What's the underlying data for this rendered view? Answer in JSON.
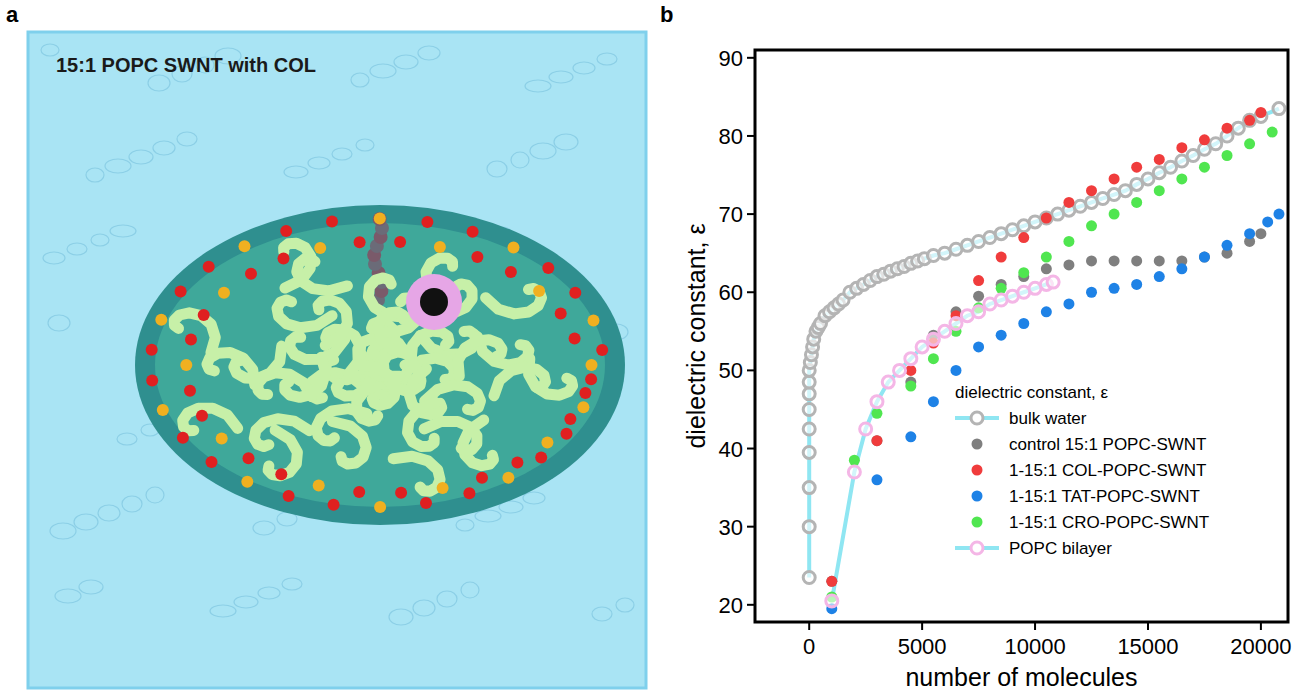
{
  "figure": {
    "panel_letters": [
      "a",
      "b"
    ]
  },
  "panel_a": {
    "label": "15:1 POPC SWNT with COL"
  },
  "chart_data": {
    "type": "scatter",
    "x_label": "number of molecules",
    "y_label": "dielectric constant, ε",
    "legend_title": "dielectric constant, ε",
    "legend": "lower right",
    "xlim": [
      -2400,
      21200
    ],
    "ylim": [
      17.8,
      91
    ],
    "xticks": [
      0,
      5000,
      10000,
      15000,
      20000
    ],
    "yticks": [
      20,
      30,
      40,
      50,
      60,
      70,
      80,
      90
    ],
    "grid": false,
    "series": [
      {
        "name": "bulk water",
        "color": "#b4b4b4",
        "marker": "open-circle",
        "line_style": "solid",
        "x": [
          0,
          0,
          0,
          0,
          0,
          0,
          0,
          0,
          0,
          50,
          100,
          150,
          200,
          300,
          400,
          500,
          700,
          900,
          1100,
          1300,
          1500,
          1800,
          2100,
          2400,
          2700,
          3000,
          3300,
          3600,
          3900,
          4200,
          4500,
          4800,
          5100,
          5500,
          6000,
          6500,
          7000,
          7500,
          8000,
          8500,
          9000,
          9500,
          10000,
          10500,
          11000,
          11500,
          12000,
          12500,
          13000,
          13500,
          14000,
          14500,
          15000,
          15500,
          16000,
          16500,
          17000,
          17500,
          18000,
          18500,
          19000,
          19500,
          20000,
          20800
        ],
        "values": [
          23.5,
          30,
          35,
          39.5,
          42.5,
          45,
          47,
          48.5,
          50,
          51,
          52,
          53,
          54,
          55,
          55.5,
          56,
          57,
          57.5,
          58,
          58.5,
          59,
          60,
          60.5,
          61,
          61.5,
          62,
          62.3,
          62.7,
          63,
          63.3,
          63.7,
          64,
          64.3,
          64.7,
          65,
          65.5,
          66,
          66.5,
          67,
          67.5,
          68,
          68.5,
          69,
          69.5,
          70,
          70.5,
          71,
          71.5,
          72,
          72.5,
          73,
          73.8,
          74.5,
          75.3,
          76,
          76.8,
          77.5,
          78.3,
          79,
          80,
          81,
          82,
          82.5,
          83.5
        ]
      },
      {
        "name": "control 15:1 POPC-SWNT",
        "color": "#7f7f7f",
        "marker": "circle",
        "x": [
          1000,
          3000,
          4500,
          5500,
          6500,
          7500,
          8500,
          9500,
          10500,
          11500,
          12500,
          13500,
          14500,
          15500,
          16500,
          17500,
          18500,
          19500,
          20000
        ],
        "values": [
          23,
          41,
          48.5,
          54.5,
          57.5,
          59.5,
          61,
          62,
          63,
          63.5,
          64,
          64,
          64,
          64,
          64,
          64.5,
          65,
          66.5,
          67.5
        ]
      },
      {
        "name": "1-15:1 COL-POPC-SWNT",
        "color": "#f03c3c",
        "marker": "circle",
        "x": [
          1000,
          3000,
          4500,
          5500,
          6500,
          7500,
          8500,
          9500,
          10500,
          11500,
          12500,
          13500,
          14500,
          15500,
          16500,
          17500,
          18500,
          19500,
          20000
        ],
        "values": [
          23,
          41,
          50,
          53.5,
          57,
          61.5,
          64.5,
          67,
          69.5,
          71.5,
          73,
          74.5,
          76,
          77,
          78.5,
          79.5,
          81,
          82,
          83
        ]
      },
      {
        "name": "1-15:1 TAT-POPC-SWNT",
        "color": "#1e82e6",
        "marker": "circle",
        "x": [
          1000,
          3000,
          4500,
          5500,
          6500,
          7500,
          8500,
          9500,
          10500,
          11500,
          12500,
          13500,
          14500,
          15500,
          16500,
          17500,
          18500,
          19500,
          20300,
          20800
        ],
        "values": [
          19.5,
          36,
          41.5,
          46,
          50,
          53,
          54.5,
          56,
          57.5,
          58.5,
          60,
          60.5,
          61,
          62,
          63,
          64.5,
          66,
          67.5,
          69,
          70
        ]
      },
      {
        "name": "1-15:1 CRO-POPC-SWNT",
        "color": "#50e650",
        "marker": "circle",
        "x": [
          1000,
          2000,
          3000,
          4500,
          5500,
          6500,
          7500,
          8500,
          9500,
          10500,
          11500,
          12500,
          13500,
          14500,
          15500,
          16500,
          17500,
          18500,
          19500,
          20500
        ],
        "values": [
          21,
          38.5,
          44.5,
          48,
          51.5,
          55,
          58,
          60.5,
          62.5,
          64.5,
          66.5,
          68.5,
          70,
          71.5,
          73,
          74.5,
          76,
          77.5,
          79,
          80.5
        ]
      },
      {
        "name": "POPC bilayer",
        "color": "#f4b6e6",
        "marker": "open-circle",
        "line_style": "solid",
        "x": [
          1000,
          2000,
          2500,
          3000,
          3500,
          4000,
          4500,
          5000,
          5500,
          6000,
          6500,
          7000,
          7500,
          8000,
          8500,
          9000,
          9500,
          10000,
          10500,
          10800
        ],
        "values": [
          20.5,
          37,
          42.5,
          46,
          48.5,
          50,
          51.5,
          53,
          54,
          55,
          56,
          57,
          57.5,
          58.5,
          59,
          59.5,
          60,
          60.5,
          61,
          61.3
        ]
      }
    ]
  }
}
